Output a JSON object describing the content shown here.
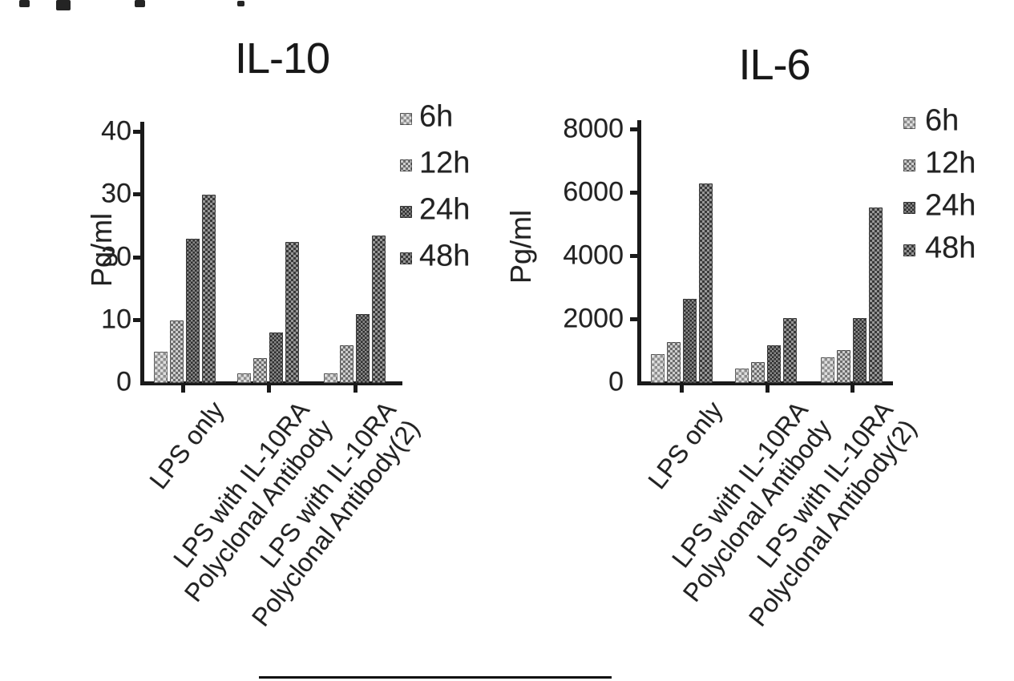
{
  "figure": {
    "background": "#ffffff",
    "text_color": "#1b1b1b"
  },
  "chart_data": [
    {
      "type": "bar",
      "title": "IL-10",
      "ylabel": "Pg/ml",
      "ylim": [
        0,
        40
      ],
      "yticks": [
        0,
        10,
        20,
        30,
        40
      ],
      "grid": false,
      "legend_position": "right",
      "legend": [
        "6h",
        "12h",
        "24h",
        "48h"
      ],
      "categories": [
        "LPS only",
        "LPS with IL-10RA\nPolyclonal Antibody",
        "LPS with IL-10RA\nPolyclonal Antibody(2)"
      ],
      "series": [
        {
          "name": "6h",
          "values": [
            5,
            1.5,
            1.5
          ]
        },
        {
          "name": "12h",
          "values": [
            10,
            4,
            6
          ]
        },
        {
          "name": "24h",
          "values": [
            23,
            8,
            11
          ]
        },
        {
          "name": "48h",
          "values": [
            30,
            22.5,
            23.5
          ]
        }
      ]
    },
    {
      "type": "bar",
      "title": "IL-6",
      "ylabel": "Pg/ml",
      "ylim": [
        0,
        8000
      ],
      "yticks": [
        0,
        2000,
        4000,
        6000,
        8000
      ],
      "grid": false,
      "legend_position": "right",
      "legend": [
        "6h",
        "12h",
        "24h",
        "48h"
      ],
      "categories": [
        "LPS only",
        "LPS with IL-10RA\nPolyclonal Antibody",
        "LPS with IL-10RA\nPolyclonal Antibody(2)"
      ],
      "series": [
        {
          "name": "6h",
          "values": [
            900,
            450,
            800
          ]
        },
        {
          "name": "12h",
          "values": [
            1300,
            650,
            1050
          ]
        },
        {
          "name": "24h",
          "values": [
            2650,
            1200,
            2050
          ]
        },
        {
          "name": "48h",
          "values": [
            6300,
            2050,
            5550
          ]
        }
      ]
    }
  ],
  "series_colors": [
    "#b6b6b6",
    "#9b9b9b",
    "#575757",
    "#6e6e6e"
  ]
}
